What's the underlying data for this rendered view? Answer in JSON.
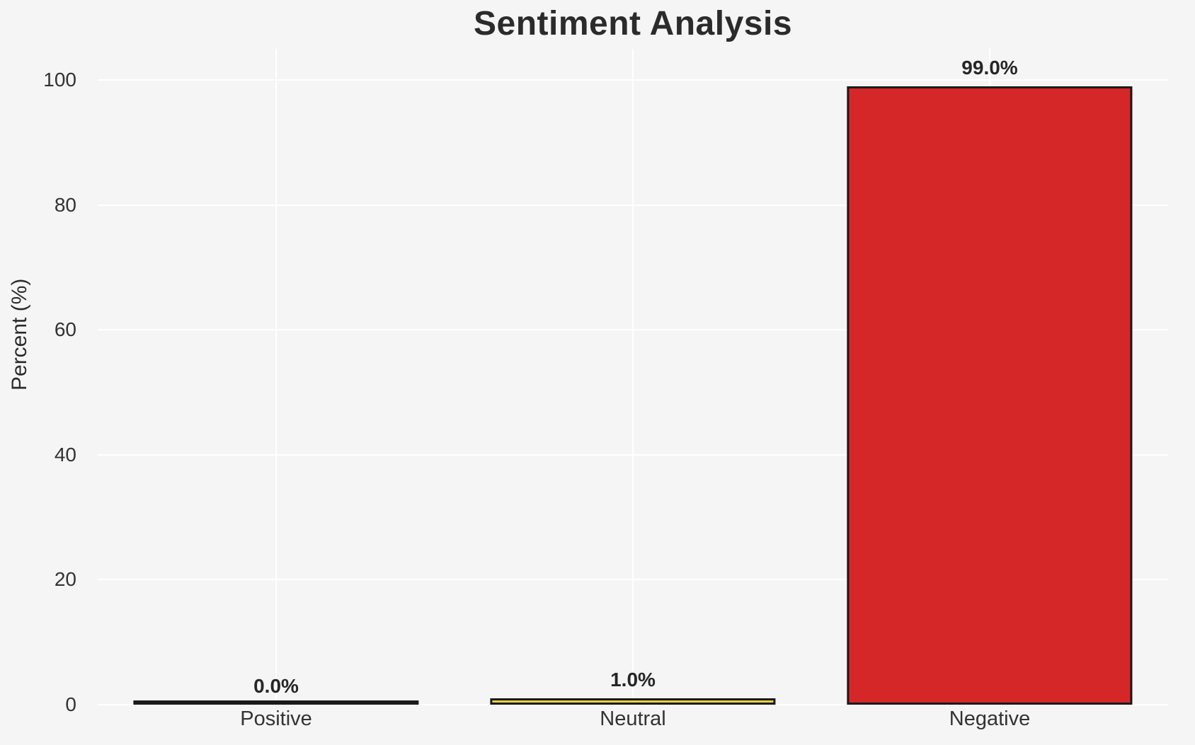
{
  "chart_data": {
    "type": "bar",
    "title": "Sentiment Analysis",
    "categories": [
      "Positive",
      "Neutral",
      "Negative"
    ],
    "values": [
      0.0,
      1.0,
      99.0
    ],
    "value_labels": [
      "0.0%",
      "1.0%",
      "99.0%"
    ],
    "ylabel": "Percent (%)",
    "xlabel": "",
    "yticks": [
      0,
      20,
      40,
      60,
      80,
      100
    ],
    "ylim": [
      0,
      105
    ],
    "grid": "on",
    "legend": "none",
    "bar_width_fraction": 0.8,
    "bar_colors": [
      "transparent",
      "#efd13d",
      "#d62728"
    ],
    "bar_edge_color": "#1a1a1a",
    "background_color": "#f5f5f6",
    "gridline_color": "#ffffff",
    "title_color": "#2b2b2b",
    "text_color": "#333333",
    "value_label_color": "#262626"
  }
}
